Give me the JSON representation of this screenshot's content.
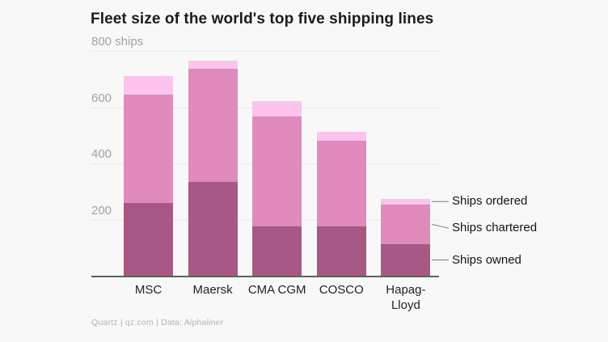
{
  "header": {
    "title": "Fleet size of the world's top five shipping lines"
  },
  "source_line": "Quartz | qz.com | Data: Alphaliner",
  "colors": {
    "background": "#f8f8f8",
    "grid": "#e9e9e9",
    "axis_line": "#5e5e5e",
    "tick_label": "#a2a2a2",
    "category_label": "#222222",
    "annotation_text": "#141414",
    "leader_line": "#7d7d7d",
    "owned": "#a75884",
    "chartered": "#e08bbc",
    "ordered": "#fcc3ee"
  },
  "chart_data": {
    "type": "bar",
    "stacked": true,
    "title": "Fleet size of the world's top five shipping lines",
    "unit_label": "800 ships",
    "categories": [
      "MSC",
      "Maersk",
      "CMA CGM",
      "COSCO",
      "Hapag-Lloyd"
    ],
    "series": [
      {
        "name": "Ships owned",
        "color": "#a75884",
        "values": [
          260,
          333,
          176,
          176,
          112
        ]
      },
      {
        "name": "Ships chartered",
        "color": "#e08bbc",
        "values": [
          385,
          403,
          390,
          304,
          142
        ]
      },
      {
        "name": "Ships ordered",
        "color": "#fcc3ee",
        "values": [
          65,
          31,
          56,
          32,
          20
        ]
      }
    ],
    "totals": [
      710,
      767,
      622,
      512,
      274
    ],
    "y_ticks": [
      {
        "value": 800,
        "label": "800 ships"
      },
      {
        "value": 600,
        "label": "600"
      },
      {
        "value": 400,
        "label": "400"
      },
      {
        "value": 200,
        "label": "200"
      }
    ],
    "ylim": [
      0,
      800
    ],
    "grid": true,
    "legend_position": "none",
    "annotations": [
      {
        "label": "Ships ordered",
        "series": "Ships ordered",
        "target_category": "Hapag-Lloyd"
      },
      {
        "label": "Ships chartered",
        "series": "Ships chartered",
        "target_category": "Hapag-Lloyd"
      },
      {
        "label": "Ships owned",
        "series": "Ships owned",
        "target_category": "Hapag-Lloyd"
      }
    ]
  }
}
